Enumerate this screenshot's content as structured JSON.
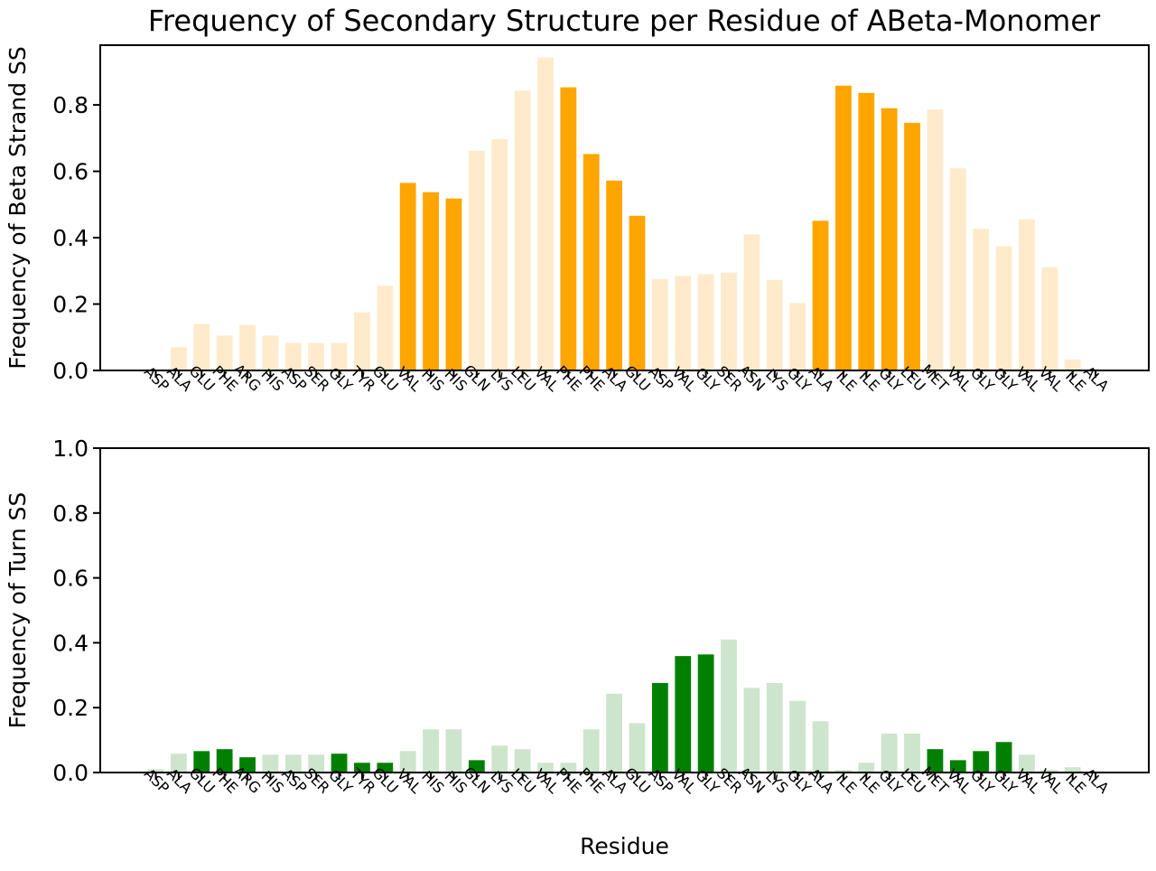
{
  "title": "Frequency of Secondary Structure per Residue of ABeta-Monomer",
  "chart_data": [
    {
      "type": "bar",
      "ylabel": "Frequency of Beta Strand SS",
      "xlabel": "",
      "ylim": [
        0,
        0.98
      ],
      "yticks": [
        0.0,
        0.2,
        0.4,
        0.6,
        0.8
      ],
      "ytick_labels": [
        "0.0",
        "0.2",
        "0.4",
        "0.6",
        "0.8"
      ],
      "colors": {
        "highlight": "#FFA500",
        "faded": "#FFEBCC"
      },
      "categories": [
        "ASP",
        "ALA",
        "GLU",
        "PHE",
        "ARG",
        "HIS",
        "ASP",
        "SER",
        "GLY",
        "TYR",
        "GLU",
        "VAL",
        "HIS",
        "HIS",
        "GLN",
        "LYS",
        "LEU",
        "VAL",
        "PHE",
        "PHE",
        "ALA",
        "GLU",
        "ASP",
        "VAL",
        "GLY",
        "SER",
        "ASN",
        "LYS",
        "GLY",
        "ALA",
        "ILE",
        "ILE",
        "GLY",
        "LEU",
        "MET",
        "VAL",
        "GLY",
        "GLY",
        "VAL",
        "VAL",
        "ILE",
        "ALA"
      ],
      "values": [
        0.0,
        0.07,
        0.14,
        0.105,
        0.137,
        0.105,
        0.083,
        0.083,
        0.083,
        0.175,
        0.255,
        0.565,
        0.537,
        0.518,
        0.662,
        0.697,
        0.843,
        0.943,
        0.853,
        0.652,
        0.572,
        0.466,
        0.276,
        0.285,
        0.29,
        0.295,
        0.41,
        0.273,
        0.203,
        0.451,
        0.858,
        0.836,
        0.79,
        0.746,
        0.787,
        0.609,
        0.427,
        0.374,
        0.455,
        0.311,
        0.033,
        0.0
      ],
      "highlight": [
        false,
        false,
        false,
        false,
        false,
        false,
        false,
        false,
        false,
        false,
        false,
        true,
        true,
        true,
        false,
        false,
        false,
        false,
        true,
        true,
        true,
        true,
        false,
        false,
        false,
        false,
        false,
        false,
        false,
        true,
        true,
        true,
        true,
        true,
        false,
        false,
        false,
        false,
        false,
        false,
        false,
        false
      ]
    },
    {
      "type": "bar",
      "ylabel": "Frequency of Turn SS",
      "xlabel": "Residue",
      "ylim": [
        0,
        1.0
      ],
      "yticks": [
        0.0,
        0.2,
        0.4,
        0.6,
        0.8,
        1.0
      ],
      "ytick_labels": [
        "0.0",
        "0.2",
        "0.4",
        "0.6",
        "0.8",
        "1.0"
      ],
      "colors": {
        "highlight": "#008000",
        "faded": "#CCE5CC"
      },
      "categories": [
        "ASP",
        "ALA",
        "GLU",
        "PHE",
        "ARG",
        "HIS",
        "ASP",
        "SER",
        "GLY",
        "TYR",
        "GLU",
        "VAL",
        "HIS",
        "HIS",
        "GLN",
        "LYS",
        "LEU",
        "VAL",
        "PHE",
        "PHE",
        "ALA",
        "GLU",
        "ASP",
        "VAL",
        "GLY",
        "SER",
        "ASN",
        "LYS",
        "GLY",
        "ALA",
        "ILE",
        "ILE",
        "GLY",
        "LEU",
        "MET",
        "VAL",
        "GLY",
        "GLY",
        "VAL",
        "VAL",
        "ILE",
        "ALA"
      ],
      "values": [
        0.01,
        0.058,
        0.066,
        0.072,
        0.047,
        0.055,
        0.055,
        0.055,
        0.058,
        0.03,
        0.03,
        0.066,
        0.133,
        0.133,
        0.038,
        0.083,
        0.072,
        0.03,
        0.03,
        0.133,
        0.243,
        0.152,
        0.276,
        0.359,
        0.364,
        0.41,
        0.261,
        0.276,
        0.221,
        0.158,
        0.008,
        0.03,
        0.12,
        0.12,
        0.072,
        0.038,
        0.066,
        0.094,
        0.055,
        0.008,
        0.016,
        0.0
      ],
      "highlight": [
        false,
        false,
        true,
        true,
        true,
        false,
        false,
        false,
        true,
        true,
        true,
        false,
        false,
        false,
        true,
        false,
        false,
        false,
        false,
        false,
        false,
        false,
        true,
        true,
        true,
        false,
        false,
        false,
        false,
        false,
        false,
        false,
        false,
        false,
        true,
        true,
        true,
        true,
        false,
        false,
        false,
        false
      ]
    }
  ]
}
